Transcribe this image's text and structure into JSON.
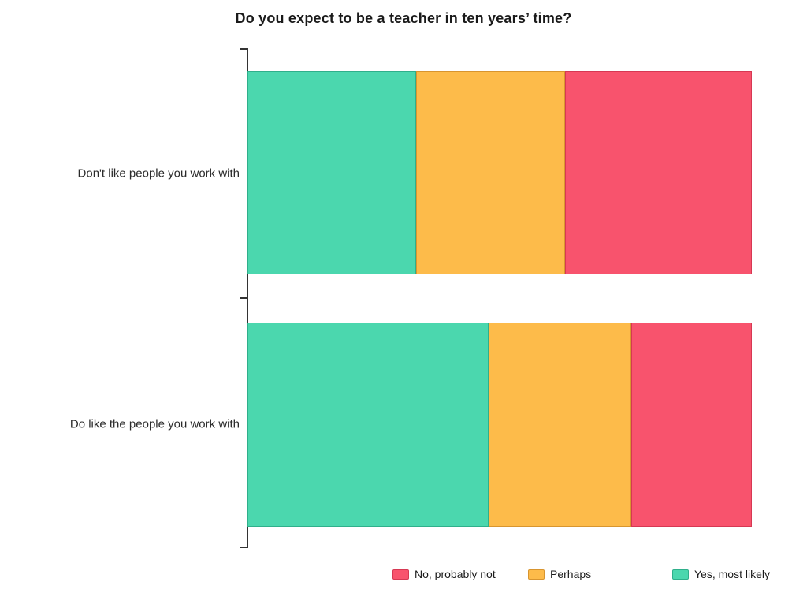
{
  "title": "Do you expect to be a teacher in ten years’ time?",
  "chart_data": {
    "type": "bar",
    "orientation": "horizontal",
    "stacked": true,
    "value_unit": "percent_share",
    "xlim": [
      0,
      100
    ],
    "grid": false,
    "background_color": "#ffffff",
    "axis_color": "#333333",
    "categories": [
      "Don't like people you work with",
      "Do like the people you work with"
    ],
    "series": [
      {
        "name": "Yes, most likely",
        "color": "#4BD7AE",
        "border_color": "#2FAF8B",
        "values": [
          33.4,
          47.8
        ]
      },
      {
        "name": "Perhaps",
        "color": "#FDBB4A",
        "border_color": "#D8952F",
        "values": [
          29.6,
          28.3
        ]
      },
      {
        "name": "No, probably not",
        "color": "#F8536D",
        "border_color": "#D63853",
        "values": [
          37.0,
          23.9
        ]
      }
    ],
    "legend_order": [
      "No, probably not",
      "Perhaps",
      "Yes, most likely"
    ],
    "legend_position": "bottom-right"
  }
}
